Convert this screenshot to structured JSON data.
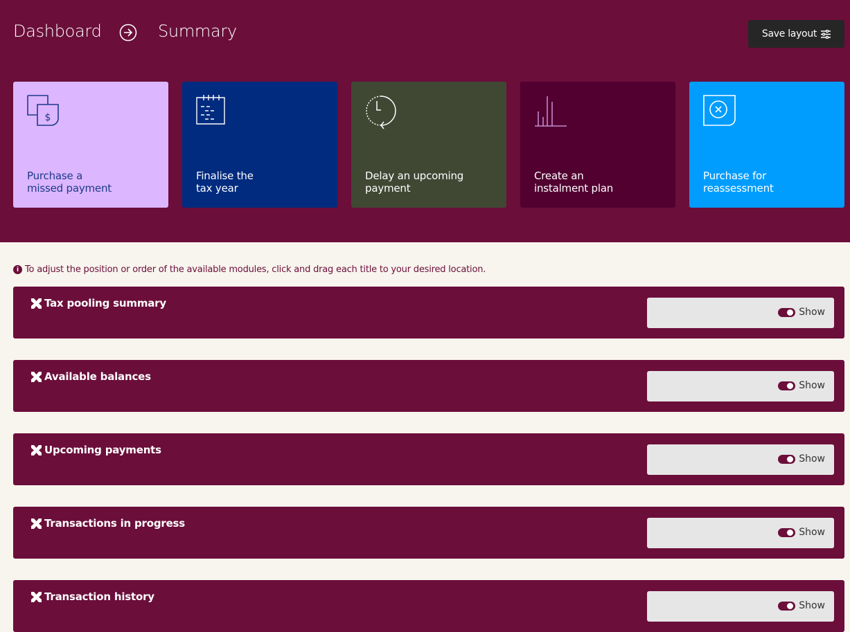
{
  "breadcrumb": {
    "root": "Dashboard",
    "current": "Summary"
  },
  "save_layout": "Save layout",
  "cards": [
    {
      "label": "Purchase a\nmissed payment",
      "bg": "#dcb6ff",
      "fg": "#1d3a8a",
      "icon": "dollar-documents-icon"
    },
    {
      "label": "Finalise the\ntax year",
      "bg": "#002b7f",
      "fg": "#ffffff",
      "icon": "calendar-icon"
    },
    {
      "label": "Delay an upcoming\npayment",
      "bg": "#404834",
      "fg": "#ffffff",
      "icon": "clock-delay-icon"
    },
    {
      "label": "Create an\ninstalment plan",
      "bg": "#510030",
      "fg": "#ffffff",
      "icon": "bar-chart-icon"
    },
    {
      "label": "Purchase for\nreassessment",
      "bg": "#009dff",
      "fg": "#ffffff",
      "icon": "cancel-document-icon"
    }
  ],
  "info": "To adjust the position or order of the available modules, click and drag each title to your desired location.",
  "modules": [
    {
      "title": "Tax pooling summary",
      "toggle": "Show",
      "on": true
    },
    {
      "title": "Available balances",
      "toggle": "Show",
      "on": true
    },
    {
      "title": "Upcoming payments",
      "toggle": "Show",
      "on": true
    },
    {
      "title": "Transactions in progress",
      "toggle": "Show",
      "on": true
    },
    {
      "title": "Transaction history",
      "toggle": "Show",
      "on": true
    }
  ]
}
